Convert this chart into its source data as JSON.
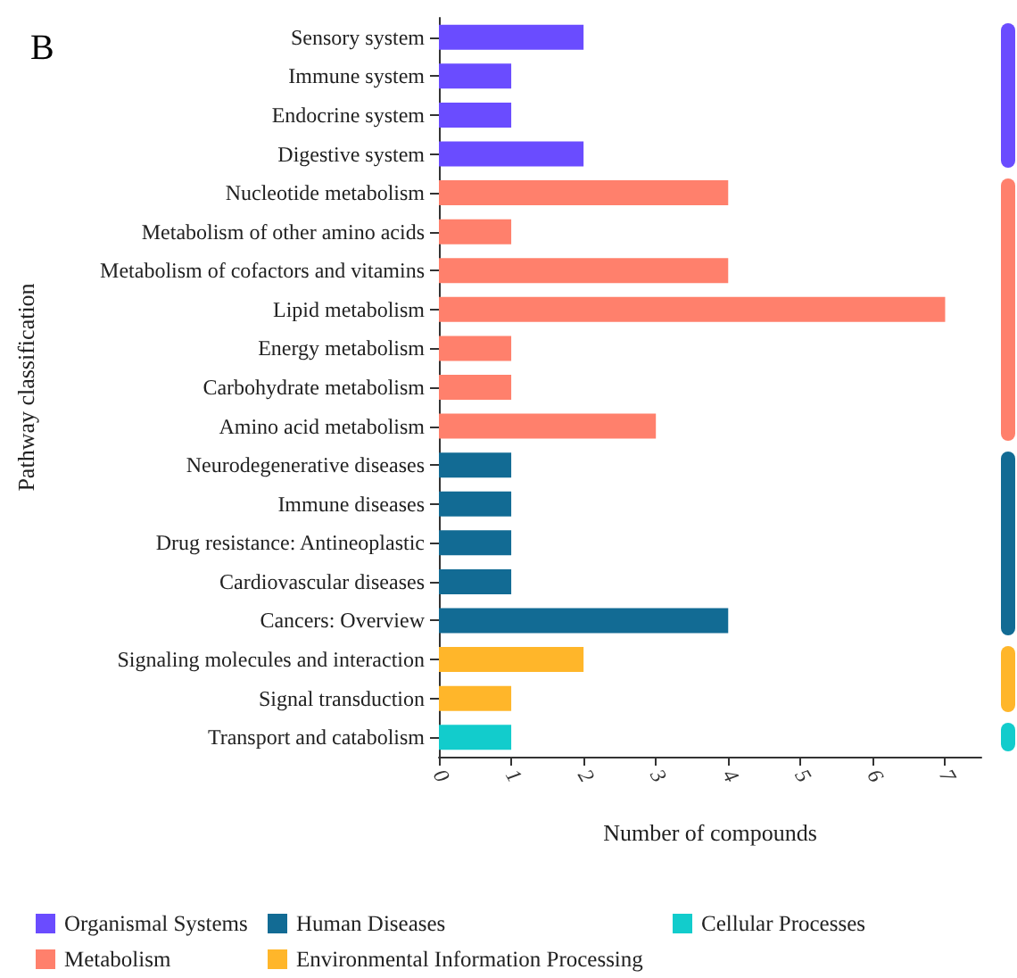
{
  "chart_data": {
    "type": "bar",
    "orientation": "horizontal",
    "title": "B",
    "xlabel": "Number of compounds",
    "ylabel": "Pathway classification",
    "categories": [
      "Sensory system",
      "Immune system",
      "Endocrine system",
      "Digestive system",
      "Nucleotide metabolism",
      "Metabolism of other amino acids",
      "Metabolism of cofactors and vitamins",
      "Lipid metabolism",
      "Energy metabolism",
      "Carbohydrate metabolism",
      "Amino acid metabolism",
      "Neurodegenerative diseases",
      "Immune diseases",
      "Drug resistance: Antineoplastic",
      "Cardiovascular diseases",
      "Cancers: Overview",
      "Signaling molecules and interaction",
      "Signal transduction",
      "Transport and catabolism"
    ],
    "series": [
      {
        "name": "Organismal Systems",
        "color": "#6a4cff",
        "values": [
          2,
          1,
          1,
          2,
          null,
          null,
          null,
          null,
          null,
          null,
          null,
          null,
          null,
          null,
          null,
          null,
          null,
          null,
          null
        ]
      },
      {
        "name": "Human Diseases",
        "color": "#126b94",
        "values": [
          null,
          null,
          null,
          null,
          null,
          null,
          null,
          null,
          null,
          null,
          null,
          1,
          1,
          1,
          1,
          4,
          null,
          null,
          null
        ]
      },
      {
        "name": "Cellular Processes",
        "color": "#12cccc",
        "values": [
          null,
          null,
          null,
          null,
          null,
          null,
          null,
          null,
          null,
          null,
          null,
          null,
          null,
          null,
          null,
          null,
          null,
          null,
          1
        ]
      },
      {
        "name": "Metabolism",
        "color": "#ff806c",
        "values": [
          null,
          null,
          null,
          null,
          4,
          1,
          4,
          7,
          1,
          1,
          3,
          null,
          null,
          null,
          null,
          null,
          null,
          null,
          null
        ]
      },
      {
        "name": "Environmental Information Processing",
        "color": "#ffb62a",
        "values": [
          null,
          null,
          null,
          null,
          null,
          null,
          null,
          null,
          null,
          null,
          null,
          null,
          null,
          null,
          null,
          null,
          2,
          1,
          null
        ]
      }
    ],
    "xlim": [
      0,
      7.5
    ],
    "xticks": [
      0,
      1,
      2,
      3,
      4,
      5,
      6,
      7
    ],
    "grid": false,
    "legend": "bottom"
  }
}
